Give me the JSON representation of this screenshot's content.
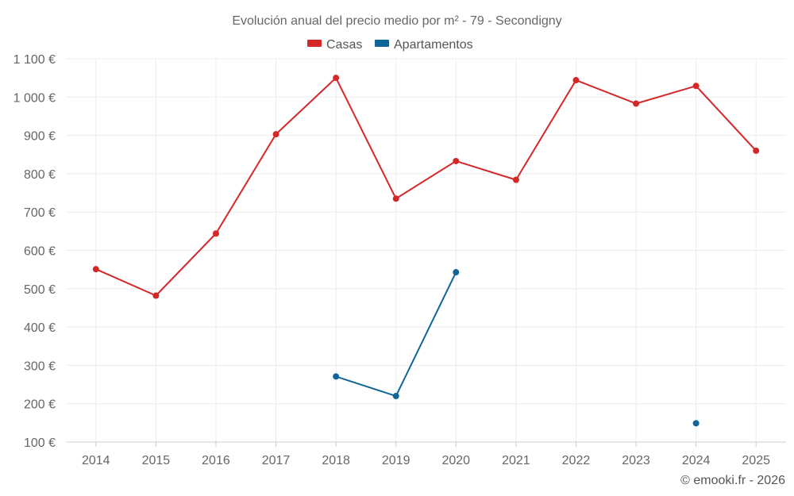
{
  "colors": {
    "casas": "#d62728",
    "apartamentos": "#0e6696"
  },
  "credit": "© emooki.fr - 2026",
  "chart_data": {
    "type": "line",
    "title": "Evolución anual del precio medio por m² - 79 - Secondigny",
    "xlabel": "",
    "ylabel": "",
    "categories": [
      "2014",
      "2015",
      "2016",
      "2017",
      "2018",
      "2019",
      "2020",
      "2021",
      "2022",
      "2023",
      "2024",
      "2025"
    ],
    "ylim": [
      100,
      1100
    ],
    "y_ticks": [
      100,
      200,
      300,
      400,
      500,
      600,
      700,
      800,
      900,
      1000,
      1100
    ],
    "y_tick_labels": [
      "100 €",
      "200 €",
      "300 €",
      "400 €",
      "500 €",
      "600 €",
      "700 €",
      "800 €",
      "900 €",
      "1 000 €",
      "1 100 €"
    ],
    "grid": true,
    "legend_position": "top-center",
    "series": [
      {
        "name": "Casas",
        "color": "#d62728",
        "values": [
          551,
          482,
          644,
          903,
          1050,
          735,
          833,
          784,
          1044,
          983,
          1029,
          860
        ]
      },
      {
        "name": "Apartamentos",
        "color": "#0e6696",
        "values": [
          null,
          null,
          null,
          null,
          271,
          220,
          543,
          null,
          null,
          null,
          149,
          null
        ]
      }
    ]
  }
}
